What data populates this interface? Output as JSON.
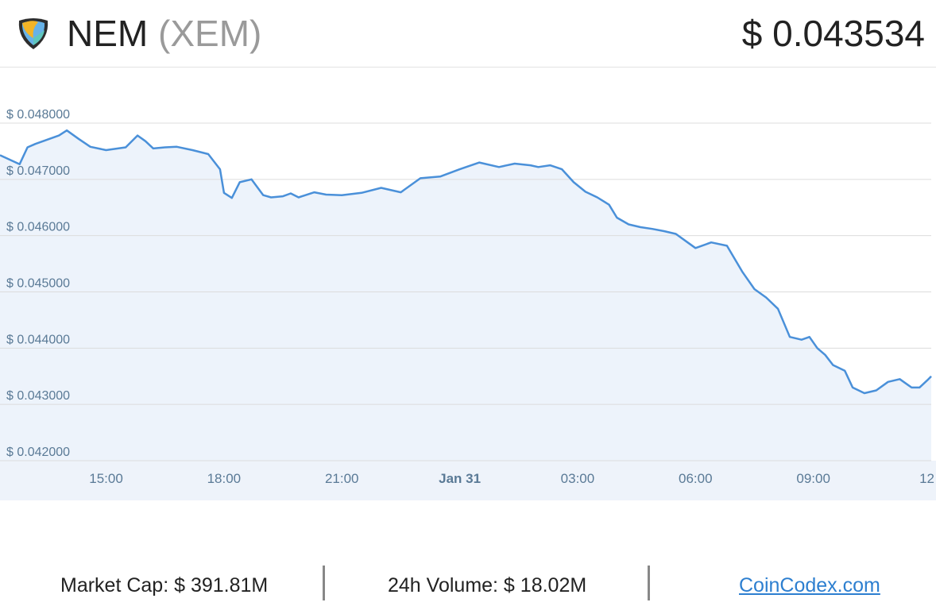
{
  "header": {
    "coin_name": "NEM",
    "coin_symbol": "(XEM)",
    "price": "$ 0.043534"
  },
  "footer": {
    "market_cap": "Market Cap: $ 391.81M",
    "volume": "24h Volume: $ 18.02M",
    "link": "CoinCodex.com"
  },
  "colors": {
    "line": "#4a90d9",
    "fill": "#edf3fb",
    "grid": "#dcdcdc",
    "axis_text": "#5a7a96"
  },
  "chart_data": {
    "type": "area",
    "title": "",
    "xlabel": "",
    "ylabel": "",
    "ylim": [
      0.042,
      0.048
    ],
    "y_ticks": [
      "$ 0.042000",
      "$ 0.043000",
      "$ 0.044000",
      "$ 0.045000",
      "$ 0.046000",
      "$ 0.047000",
      "$ 0.048000"
    ],
    "x_ticks": [
      "15:00",
      "18:00",
      "21:00",
      "Jan 31",
      "03:00",
      "06:00",
      "09:00",
      "12"
    ],
    "x_tick_hours": [
      15,
      18,
      21,
      24,
      27,
      30,
      33,
      36
    ],
    "grid": true,
    "series": [
      {
        "x": [
          12.3,
          12.8,
          13.0,
          13.2,
          13.8,
          14.0,
          14.3,
          14.6,
          15.0,
          15.5,
          15.8,
          16.0,
          16.2,
          16.5,
          16.8,
          17.2,
          17.6,
          17.9,
          18.0,
          18.2,
          18.4,
          18.7,
          19.0,
          19.2,
          19.5,
          19.7,
          19.9,
          20.3,
          20.6,
          21.0,
          21.5,
          22.0,
          22.5,
          23.0,
          23.5,
          24.0,
          24.5,
          25.0,
          25.4,
          25.8,
          26.0,
          26.3,
          26.6,
          26.9,
          27.2,
          27.5,
          27.8,
          28.0,
          28.3,
          28.6,
          28.9,
          29.2,
          29.5,
          29.8,
          30.0,
          30.4,
          30.8,
          31.2,
          31.5,
          31.8,
          32.1,
          32.4,
          32.7,
          32.9,
          33.1,
          33.3,
          33.5,
          33.8,
          34.0,
          34.3,
          34.6,
          34.9,
          35.2,
          35.5,
          35.7,
          35.9,
          36.0
        ],
        "values": [
          0.04743,
          0.04727,
          0.04757,
          0.04763,
          0.04778,
          0.04787,
          0.04772,
          0.04758,
          0.04752,
          0.04757,
          0.04778,
          0.04768,
          0.04755,
          0.04757,
          0.04758,
          0.04752,
          0.04745,
          0.04718,
          0.04676,
          0.04667,
          0.04695,
          0.047,
          0.04672,
          0.04668,
          0.0467,
          0.04675,
          0.04668,
          0.04677,
          0.04673,
          0.04672,
          0.04676,
          0.04685,
          0.04677,
          0.04702,
          0.04705,
          0.04718,
          0.0473,
          0.04722,
          0.04728,
          0.04725,
          0.04722,
          0.04725,
          0.04718,
          0.04695,
          0.04678,
          0.04668,
          0.04655,
          0.04632,
          0.0462,
          0.04615,
          0.04612,
          0.04608,
          0.04603,
          0.04588,
          0.04578,
          0.04588,
          0.04582,
          0.04535,
          0.04505,
          0.0449,
          0.0447,
          0.0442,
          0.04415,
          0.0442,
          0.044,
          0.04388,
          0.0437,
          0.0436,
          0.0433,
          0.0432,
          0.04325,
          0.0434,
          0.04345,
          0.0433,
          0.0433,
          0.04343,
          0.0435
        ]
      }
    ]
  }
}
